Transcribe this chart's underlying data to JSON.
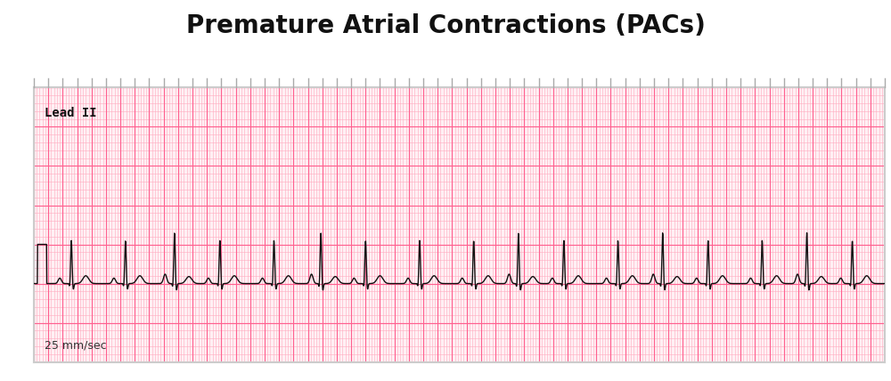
{
  "title": "Premature Atrial Contractions (PACs)",
  "title_fontsize": 20,
  "title_fontweight": "bold",
  "lead_label": "Lead II",
  "speed_label": "25 mm/sec",
  "background_color": "#FFFFFF",
  "ecg_paper_bg": "#FFF0F4",
  "ecg_minor_color": "#FFAABF",
  "ecg_major_color": "#FF6090",
  "ecg_signal_color": "#111111",
  "border_color": "#CCCCCC",
  "tick_color": "#AAAAAA",
  "label_color": "#111111",
  "speed_color": "#333333"
}
